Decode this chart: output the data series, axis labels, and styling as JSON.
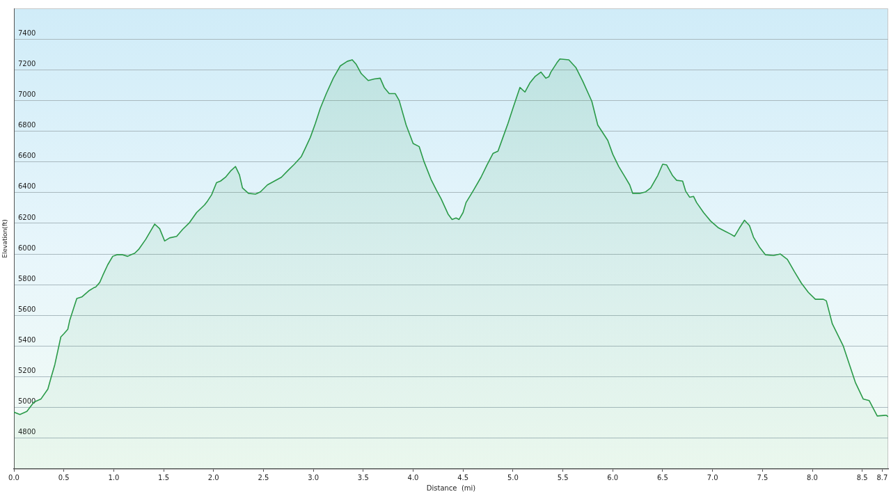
{
  "chart_data": {
    "type": "area",
    "xlabel": "Distance  (mi)",
    "ylabel": "Elevation(ft)",
    "xlim": [
      0,
      8.76
    ],
    "ylim": [
      4600,
      7600
    ],
    "xticks": [
      {
        "value": 0,
        "label": "0.0"
      },
      {
        "value": 0.5,
        "label": "0.5"
      },
      {
        "value": 1,
        "label": "1.0"
      },
      {
        "value": 1.5,
        "label": "1.5"
      },
      {
        "value": 2,
        "label": "2.0"
      },
      {
        "value": 2.5,
        "label": "2.5"
      },
      {
        "value": 3,
        "label": "3.0"
      },
      {
        "value": 3.5,
        "label": "3.5"
      },
      {
        "value": 4,
        "label": "4.0"
      },
      {
        "value": 4.5,
        "label": "4.5"
      },
      {
        "value": 5,
        "label": "5.0"
      },
      {
        "value": 5.5,
        "label": "5.5"
      },
      {
        "value": 6,
        "label": "6.0"
      },
      {
        "value": 6.5,
        "label": "6.5"
      },
      {
        "value": 7,
        "label": "7.0"
      },
      {
        "value": 7.5,
        "label": "7.5"
      },
      {
        "value": 8,
        "label": "8.0"
      },
      {
        "value": 8.5,
        "label": "8.5"
      },
      {
        "value": 8.7,
        "label": "8.7"
      }
    ],
    "yticks": [
      4800,
      5000,
      5200,
      5400,
      5600,
      5800,
      6000,
      6200,
      6400,
      6600,
      6800,
      7000,
      7200,
      7400
    ],
    "grid": "y",
    "legend": false,
    "marker": "none",
    "line_style": "solid",
    "series": [
      {
        "color": "#2a9a48",
        "x": [
          0,
          0.06,
          0.13,
          0.2,
          0.27,
          0.34,
          0.37,
          0.41,
          0.44,
          0.47,
          0.5,
          0.54,
          0.56,
          0.6,
          0.63,
          0.68,
          0.75,
          0.8,
          0.82,
          0.86,
          0.89,
          0.94,
          0.99,
          1.03,
          1.09,
          1.14,
          1.17,
          1.21,
          1.25,
          1.32,
          1.37,
          1.41,
          1.46,
          1.51,
          1.56,
          1.63,
          1.69,
          1.76,
          1.83,
          1.91,
          1.94,
          1.98,
          2.03,
          2.07,
          2.12,
          2.17,
          2.22,
          2.26,
          2.29,
          2.35,
          2.42,
          2.47,
          2.54,
          2.61,
          2.68,
          2.74,
          2.81,
          2.88,
          2.92,
          2.97,
          3.02,
          3.07,
          3.13,
          3.2,
          3.27,
          3.34,
          3.39,
          3.43,
          3.48,
          3.55,
          3.61,
          3.67,
          3.71,
          3.76,
          3.82,
          3.86,
          3.93,
          4,
          4.06,
          4.11,
          4.18,
          4.23,
          4.28,
          4.35,
          4.39,
          4.43,
          4.46,
          4.5,
          4.53,
          4.6,
          4.68,
          4.74,
          4.8,
          4.85,
          4.9,
          4.95,
          5,
          5.07,
          5.12,
          5.17,
          5.22,
          5.28,
          5.33,
          5.36,
          5.38,
          5.44,
          5.47,
          5.56,
          5.63,
          5.7,
          5.79,
          5.85,
          5.95,
          6,
          6.06,
          6.12,
          6.17,
          6.2,
          6.27,
          6.33,
          6.38,
          6.45,
          6.5,
          6.54,
          6.6,
          6.64,
          6.7,
          6.73,
          6.77,
          6.81,
          6.84,
          6.91,
          6.98,
          7.06,
          7.12,
          7.18,
          7.22,
          7.27,
          7.32,
          7.37,
          7.41,
          7.47,
          7.53,
          7.61,
          7.68,
          7.75,
          7.82,
          7.89,
          7.96,
          8.03,
          8.11,
          8.14,
          8.2,
          8.31,
          8.43,
          8.51,
          8.57,
          8.65,
          8.74,
          8.76
        ],
        "values": [
          4970,
          4955,
          4975,
          5035,
          5055,
          5120,
          5190,
          5280,
          5370,
          5460,
          5480,
          5510,
          5570,
          5650,
          5710,
          5720,
          5760,
          5780,
          5785,
          5815,
          5860,
          5930,
          5985,
          5995,
          5995,
          5985,
          5995,
          6005,
          6030,
          6095,
          6150,
          6195,
          6165,
          6085,
          6105,
          6115,
          6160,
          6205,
          6270,
          6320,
          6345,
          6385,
          6465,
          6475,
          6500,
          6540,
          6570,
          6515,
          6430,
          6395,
          6390,
          6405,
          6450,
          6475,
          6500,
          6540,
          6585,
          6635,
          6690,
          6760,
          6850,
          6950,
          7045,
          7145,
          7225,
          7255,
          7265,
          7235,
          7175,
          7130,
          7140,
          7145,
          7085,
          7045,
          7045,
          7000,
          6840,
          6720,
          6700,
          6600,
          6485,
          6420,
          6360,
          6260,
          6225,
          6235,
          6225,
          6270,
          6335,
          6410,
          6500,
          6580,
          6655,
          6670,
          6760,
          6850,
          6950,
          7085,
          7055,
          7115,
          7155,
          7185,
          7145,
          7155,
          7185,
          7245,
          7270,
          7265,
          7215,
          7125,
          6995,
          6840,
          6740,
          6650,
          6570,
          6505,
          6450,
          6395,
          6395,
          6405,
          6430,
          6510,
          6585,
          6580,
          6510,
          6480,
          6475,
          6410,
          6370,
          6375,
          6335,
          6270,
          6215,
          6170,
          6150,
          6130,
          6115,
          6170,
          6220,
          6185,
          6110,
          6045,
          5995,
          5990,
          6000,
          5965,
          5885,
          5810,
          5750,
          5705,
          5705,
          5695,
          5545,
          5400,
          5165,
          5055,
          5045,
          4945,
          4950,
          4940
        ]
      }
    ]
  }
}
